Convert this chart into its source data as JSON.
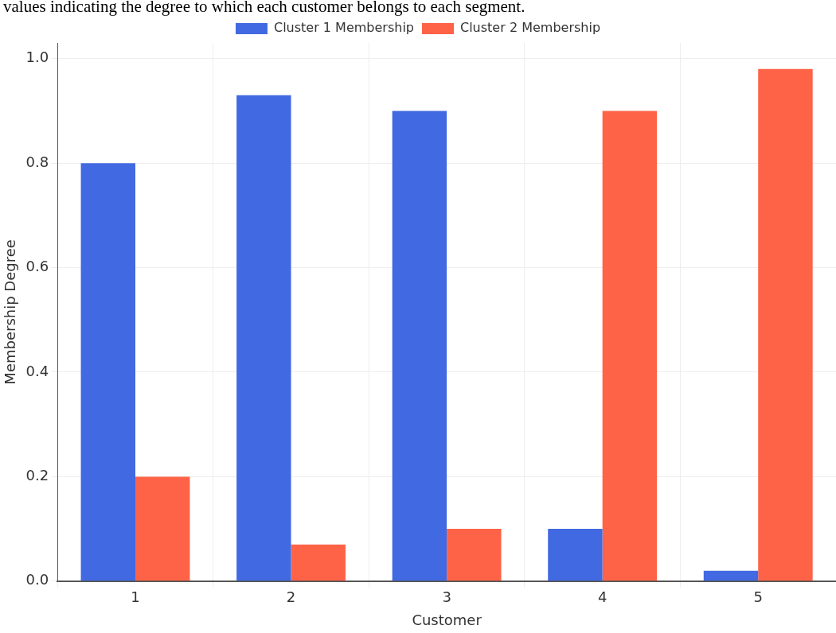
{
  "chart_data": {
    "type": "bar",
    "subtitle": "values indicating the degree to which each customer belongs to each segment.",
    "xlabel": "Customer",
    "ylabel": "Membership Degree",
    "categories": [
      "1",
      "2",
      "3",
      "4",
      "5"
    ],
    "series": [
      {
        "name": "Cluster 1 Membership",
        "color": "#4169e1",
        "values": [
          0.8,
          0.93,
          0.9,
          0.1,
          0.02
        ]
      },
      {
        "name": "Cluster 2 Membership",
        "color": "#ff6347",
        "values": [
          0.2,
          0.07,
          0.1,
          0.9,
          0.98
        ]
      }
    ],
    "ylim": [
      0,
      1.03
    ],
    "yticks": [
      {
        "value": 0,
        "label": "0.0"
      },
      {
        "value": 0.2,
        "label": "0.2"
      },
      {
        "value": 0.4,
        "label": "0.4"
      },
      {
        "value": 0.6,
        "label": "0.6"
      },
      {
        "value": 0.8,
        "label": "0.8"
      },
      {
        "value": 1,
        "label": "1.0"
      }
    ],
    "grid": true,
    "legend": "top"
  }
}
